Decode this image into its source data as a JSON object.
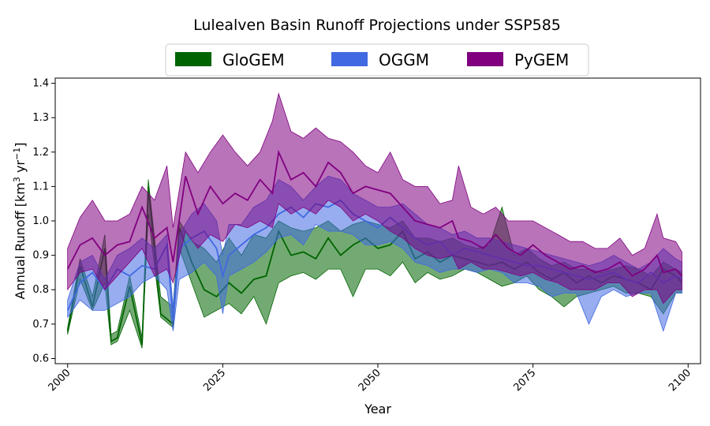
{
  "chart_data": {
    "type": "area",
    "title": "Lulealven Basin Runoff Projections under SSP585",
    "xlabel": "Year",
    "ylabel_main": "Annual Runoff [km",
    "ylabel_sup1": "3",
    "ylabel_mid": " yr",
    "ylabel_sup2": "−1",
    "ylabel_end": "]",
    "xlim": [
      1998,
      2102
    ],
    "ylim": [
      0.585,
      1.415
    ],
    "xticks": [
      2000,
      2025,
      2050,
      2075,
      2100
    ],
    "yticks": [
      0.6,
      0.7,
      0.8,
      0.9,
      1.0,
      1.1,
      1.2,
      1.3,
      1.4
    ],
    "ytick_labels": [
      "0.6",
      "0.7",
      "0.8",
      "0.9",
      "1.0",
      "1.1",
      "1.2",
      "1.3",
      "1.4"
    ],
    "xtick_labels": [
      "2000",
      "2025",
      "2050",
      "2075",
      "2100"
    ],
    "legend_position": "top-center",
    "series": [
      {
        "name": "GloGEM",
        "color": "#006400",
        "anchors": [
          [
            2000,
            0.68,
            0.67,
            0.69
          ],
          [
            2002,
            0.87,
            0.83,
            0.89
          ],
          [
            2004,
            0.75,
            0.74,
            0.78
          ],
          [
            2006,
            0.92,
            0.82,
            0.96
          ],
          [
            2007,
            0.65,
            0.64,
            0.67
          ],
          [
            2008,
            0.66,
            0.65,
            0.68
          ],
          [
            2010,
            0.81,
            0.74,
            0.84
          ],
          [
            2012,
            0.64,
            0.63,
            0.66
          ],
          [
            2013,
            1.1,
            1.02,
            1.12
          ],
          [
            2015,
            0.73,
            0.72,
            0.78
          ],
          [
            2017,
            0.7,
            0.69,
            0.75
          ],
          [
            2018,
            0.98,
            0.92,
            1.0
          ],
          [
            2020,
            0.88,
            0.82,
            0.94
          ],
          [
            2022,
            0.8,
            0.72,
            0.92
          ],
          [
            2024,
            0.78,
            0.74,
            0.88
          ],
          [
            2026,
            0.82,
            0.76,
            0.95
          ],
          [
            2028,
            0.79,
            0.73,
            0.9
          ],
          [
            2030,
            0.83,
            0.78,
            0.96
          ],
          [
            2032,
            0.84,
            0.7,
            0.95
          ],
          [
            2034,
            0.97,
            0.82,
            1.0
          ],
          [
            2036,
            0.9,
            0.84,
            0.98
          ],
          [
            2038,
            0.91,
            0.85,
            0.97
          ],
          [
            2040,
            0.89,
            0.83,
            0.98
          ],
          [
            2042,
            0.95,
            0.86,
            1.0
          ],
          [
            2044,
            0.9,
            0.86,
            0.97
          ],
          [
            2046,
            0.93,
            0.78,
            0.99
          ],
          [
            2048,
            0.95,
            0.86,
            1.0
          ],
          [
            2050,
            0.92,
            0.86,
            0.99
          ],
          [
            2052,
            0.93,
            0.84,
            0.98
          ],
          [
            2054,
            0.97,
            0.88,
            1.0
          ],
          [
            2056,
            0.89,
            0.82,
            0.95
          ],
          [
            2058,
            0.91,
            0.85,
            0.95
          ],
          [
            2060,
            0.88,
            0.83,
            0.94
          ],
          [
            2062,
            0.9,
            0.84,
            0.95
          ],
          [
            2064,
            0.89,
            0.86,
            0.93
          ],
          [
            2066,
            0.88,
            0.85,
            0.92
          ],
          [
            2068,
            0.87,
            0.83,
            0.93
          ],
          [
            2070,
            0.88,
            0.81,
            1.04
          ],
          [
            2072,
            0.86,
            0.82,
            0.9
          ],
          [
            2074,
            0.88,
            0.84,
            0.92
          ],
          [
            2076,
            0.85,
            0.8,
            0.89
          ],
          [
            2078,
            0.83,
            0.78,
            0.87
          ],
          [
            2080,
            0.85,
            0.75,
            0.88
          ],
          [
            2082,
            0.82,
            0.78,
            0.86
          ],
          [
            2084,
            0.84,
            0.79,
            0.86
          ],
          [
            2086,
            0.82,
            0.8,
            0.85
          ],
          [
            2088,
            0.84,
            0.81,
            0.86
          ],
          [
            2090,
            0.83,
            0.79,
            0.87
          ],
          [
            2092,
            0.82,
            0.79,
            0.86
          ],
          [
            2094,
            0.8,
            0.78,
            0.84
          ],
          [
            2096,
            0.86,
            0.73,
            0.88
          ],
          [
            2098,
            0.84,
            0.79,
            0.86
          ],
          [
            2099,
            0.82,
            0.79,
            0.85
          ]
        ]
      },
      {
        "name": "OGGM",
        "color": "#4169e1",
        "anchors": [
          [
            2000,
            0.74,
            0.72,
            0.77
          ],
          [
            2002,
            0.82,
            0.77,
            0.88
          ],
          [
            2004,
            0.85,
            0.74,
            0.9
          ],
          [
            2006,
            0.8,
            0.74,
            0.83
          ],
          [
            2008,
            0.86,
            0.76,
            0.9
          ],
          [
            2010,
            0.84,
            0.78,
            0.92
          ],
          [
            2012,
            0.87,
            0.82,
            0.95
          ],
          [
            2014,
            0.86,
            0.84,
            0.92
          ],
          [
            2016,
            0.93,
            0.8,
            0.96
          ],
          [
            2017,
            0.71,
            0.68,
            0.75
          ],
          [
            2018,
            0.92,
            0.83,
            0.96
          ],
          [
            2020,
            0.95,
            0.85,
            1.02
          ],
          [
            2022,
            0.97,
            0.88,
            1.05
          ],
          [
            2024,
            0.92,
            0.84,
            1.0
          ],
          [
            2025,
            0.84,
            0.73,
            0.9
          ],
          [
            2026,
            0.9,
            0.84,
            0.99
          ],
          [
            2028,
            0.93,
            0.86,
            0.99
          ],
          [
            2030,
            0.96,
            0.88,
            1.04
          ],
          [
            2032,
            0.98,
            0.91,
            1.06
          ],
          [
            2034,
            1.02,
            0.95,
            1.12
          ],
          [
            2036,
            1.04,
            0.96,
            1.1
          ],
          [
            2038,
            1.01,
            0.93,
            1.06
          ],
          [
            2040,
            1.05,
            0.99,
            1.1
          ],
          [
            2042,
            1.04,
            0.97,
            1.13
          ],
          [
            2044,
            1.06,
            0.97,
            1.12
          ],
          [
            2046,
            1.02,
            0.96,
            1.08
          ],
          [
            2048,
            1.0,
            0.93,
            1.06
          ],
          [
            2050,
            0.98,
            0.93,
            1.04
          ],
          [
            2052,
            1.01,
            0.94,
            1.04
          ],
          [
            2054,
            0.98,
            0.92,
            1.05
          ],
          [
            2056,
            0.95,
            0.88,
            1.02
          ],
          [
            2058,
            0.93,
            0.87,
            0.99
          ],
          [
            2060,
            0.94,
            0.85,
            0.98
          ],
          [
            2062,
            0.9,
            0.86,
            0.96
          ],
          [
            2064,
            0.92,
            0.86,
            0.97
          ],
          [
            2066,
            0.91,
            0.85,
            0.95
          ],
          [
            2068,
            0.9,
            0.86,
            0.95
          ],
          [
            2070,
            0.89,
            0.85,
            0.94
          ],
          [
            2072,
            0.88,
            0.82,
            0.93
          ],
          [
            2074,
            0.87,
            0.82,
            0.92
          ],
          [
            2076,
            0.87,
            0.81,
            0.91
          ],
          [
            2078,
            0.86,
            0.78,
            0.9
          ],
          [
            2080,
            0.85,
            0.79,
            0.89
          ],
          [
            2082,
            0.84,
            0.79,
            0.88
          ],
          [
            2084,
            0.83,
            0.7,
            0.87
          ],
          [
            2086,
            0.84,
            0.78,
            0.88
          ],
          [
            2088,
            0.85,
            0.8,
            0.9
          ],
          [
            2090,
            0.83,
            0.78,
            0.88
          ],
          [
            2092,
            0.82,
            0.79,
            0.86
          ],
          [
            2094,
            0.85,
            0.79,
            0.88
          ],
          [
            2096,
            0.82,
            0.68,
            0.92
          ],
          [
            2098,
            0.84,
            0.79,
            0.89
          ],
          [
            2099,
            0.83,
            0.79,
            0.88
          ]
        ]
      },
      {
        "name": "PyGEM",
        "color": "#800080",
        "anchors": [
          [
            2000,
            0.86,
            0.8,
            0.92
          ],
          [
            2002,
            0.93,
            0.85,
            1.01
          ],
          [
            2004,
            0.95,
            0.86,
            1.06
          ],
          [
            2006,
            0.9,
            0.8,
            1.0
          ],
          [
            2008,
            0.93,
            0.84,
            1.0
          ],
          [
            2010,
            0.94,
            0.88,
            1.02
          ],
          [
            2012,
            1.04,
            0.92,
            1.1
          ],
          [
            2014,
            0.95,
            0.84,
            1.06
          ],
          [
            2016,
            0.98,
            0.86,
            1.16
          ],
          [
            2017,
            0.88,
            0.82,
            0.98
          ],
          [
            2019,
            1.13,
            0.97,
            1.2
          ],
          [
            2021,
            1.02,
            0.92,
            1.14
          ],
          [
            2023,
            1.1,
            0.96,
            1.2
          ],
          [
            2025,
            1.05,
            0.94,
            1.25
          ],
          [
            2027,
            1.08,
            0.99,
            1.2
          ],
          [
            2029,
            1.06,
            0.98,
            1.16
          ],
          [
            2031,
            1.12,
            1.0,
            1.2
          ],
          [
            2033,
            1.08,
            0.98,
            1.29
          ],
          [
            2034,
            1.2,
            1.05,
            1.37
          ],
          [
            2036,
            1.12,
            1.02,
            1.26
          ],
          [
            2038,
            1.14,
            1.04,
            1.24
          ],
          [
            2040,
            1.1,
            1.02,
            1.27
          ],
          [
            2042,
            1.17,
            1.06,
            1.24
          ],
          [
            2044,
            1.14,
            1.04,
            1.23
          ],
          [
            2046,
            1.08,
            1.0,
            1.2
          ],
          [
            2048,
            1.1,
            1.02,
            1.16
          ],
          [
            2050,
            1.09,
            1.0,
            1.14
          ],
          [
            2052,
            1.08,
            0.97,
            1.2
          ],
          [
            2054,
            1.04,
            0.95,
            1.12
          ],
          [
            2056,
            1.0,
            0.92,
            1.1
          ],
          [
            2058,
            0.99,
            0.9,
            1.1
          ],
          [
            2060,
            0.98,
            0.89,
            1.05
          ],
          [
            2062,
            1.0,
            0.9,
            1.06
          ],
          [
            2063,
            0.95,
            0.86,
            1.16
          ],
          [
            2065,
            0.94,
            0.88,
            1.04
          ],
          [
            2067,
            0.92,
            0.86,
            1.02
          ],
          [
            2069,
            0.96,
            0.86,
            1.04
          ],
          [
            2071,
            0.92,
            0.85,
            1.0
          ],
          [
            2073,
            0.9,
            0.84,
            1.0
          ],
          [
            2075,
            0.93,
            0.85,
            1.0
          ],
          [
            2077,
            0.9,
            0.83,
            0.98
          ],
          [
            2079,
            0.88,
            0.82,
            0.96
          ],
          [
            2081,
            0.86,
            0.8,
            0.94
          ],
          [
            2083,
            0.87,
            0.8,
            0.94
          ],
          [
            2085,
            0.85,
            0.8,
            0.92
          ],
          [
            2087,
            0.86,
            0.82,
            0.92
          ],
          [
            2089,
            0.88,
            0.82,
            0.95
          ],
          [
            2091,
            0.84,
            0.78,
            0.9
          ],
          [
            2093,
            0.86,
            0.8,
            0.92
          ],
          [
            2095,
            0.9,
            0.8,
            1.02
          ],
          [
            2096,
            0.85,
            0.76,
            0.95
          ],
          [
            2098,
            0.86,
            0.8,
            0.94
          ],
          [
            2099,
            0.84,
            0.8,
            0.91
          ]
        ]
      }
    ]
  }
}
